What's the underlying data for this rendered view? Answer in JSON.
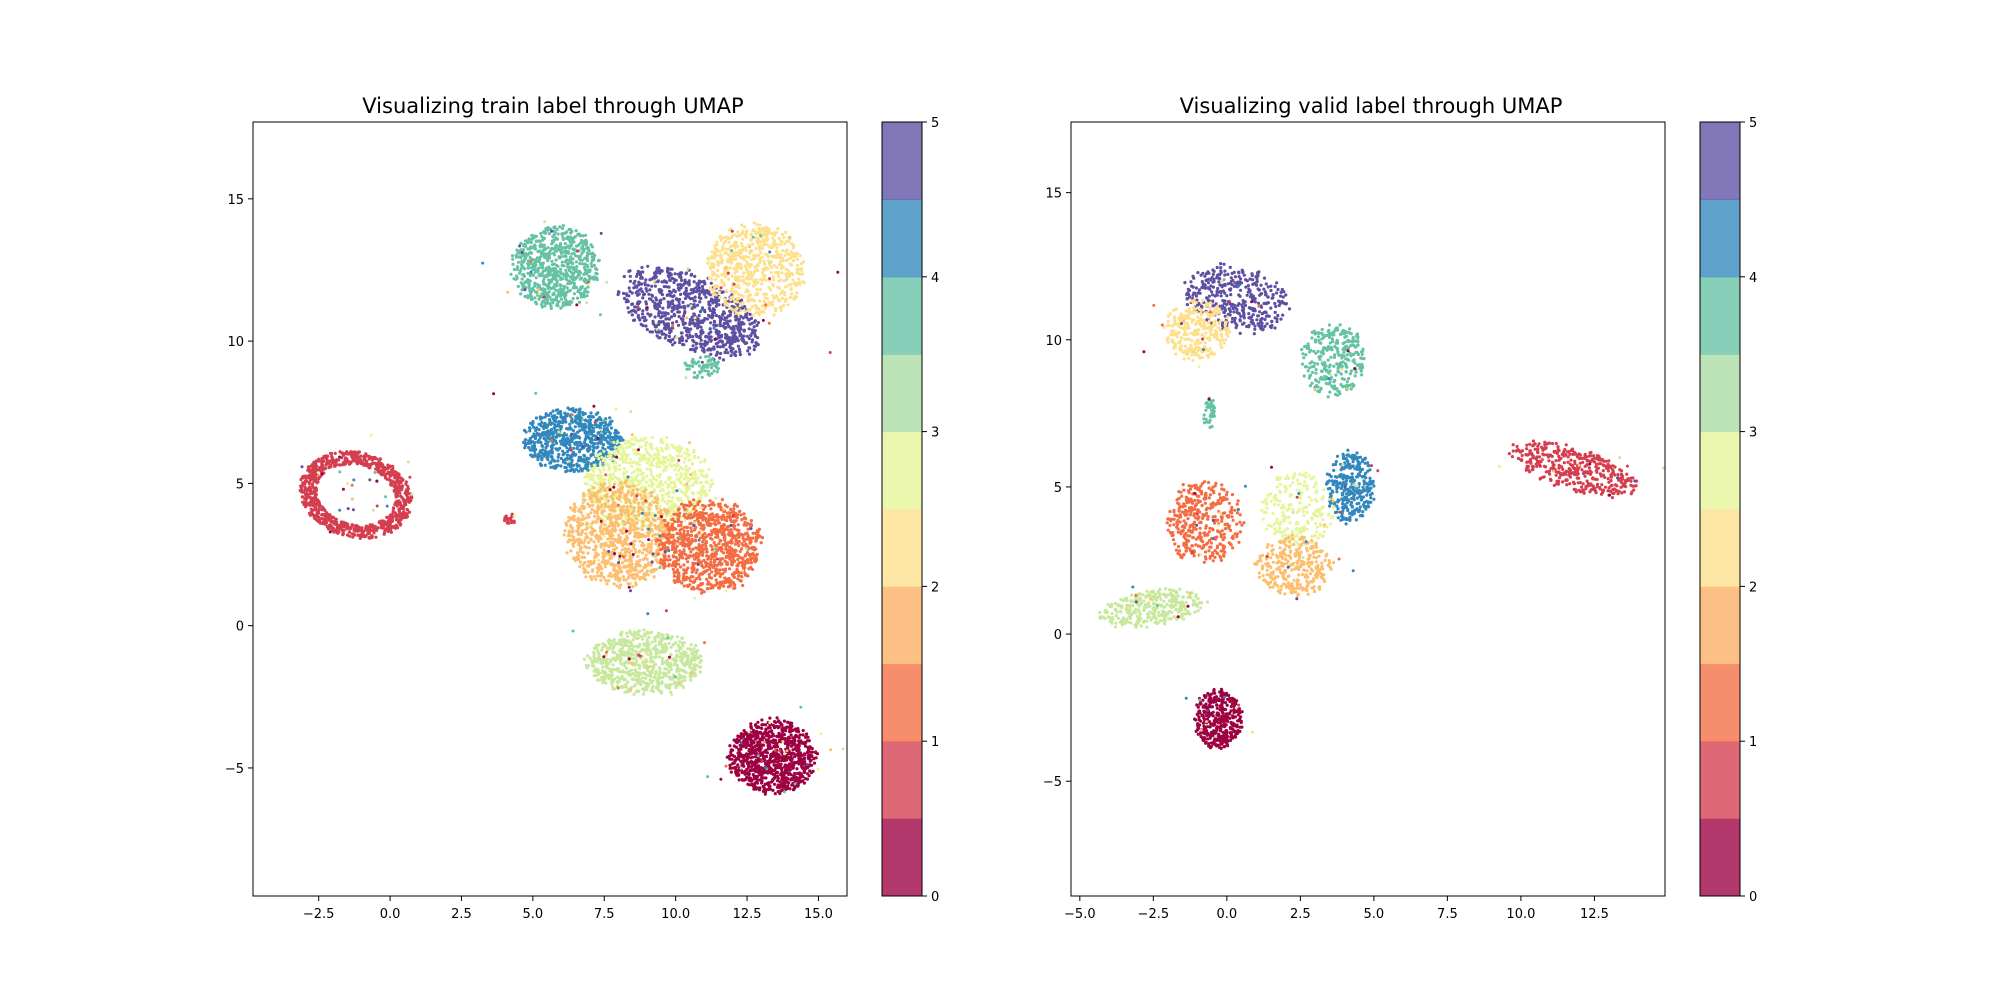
{
  "colorbar_colors": [
    "#9e0142",
    "#d53e4f",
    "#f46d43",
    "#fdae61",
    "#fee08b",
    "#e6f598",
    "#abdda4",
    "#66c2a5",
    "#3288bd",
    "#5e4fa2"
  ],
  "class_colors": {
    "0": "#9e0142",
    "1": "#d53e4f",
    "1.5": "#f46d43",
    "2": "#fdbf6f",
    "2.5": "#fee08b",
    "3": "#c7e89d",
    "3.5": "#e6f598",
    "4": "#66c2a5",
    "4.5": "#3288bd",
    "5": "#5e4fa2"
  },
  "chart_data": [
    {
      "type": "scatter",
      "title": "Visualizing train label through UMAP",
      "xlabel": "",
      "ylabel": "",
      "xlim": [
        -4.8,
        16.0
      ],
      "ylim": [
        -9.5,
        17.7
      ],
      "xticks": [
        "−2.5",
        "0.0",
        "2.5",
        "5.0",
        "7.5",
        "10.0",
        "12.5",
        "15.0"
      ],
      "xtick_values": [
        -2.5,
        0,
        2.5,
        5,
        7.5,
        10,
        12.5,
        15
      ],
      "yticks": [
        "−5",
        "0",
        "5",
        "10",
        "15"
      ],
      "ytick_values": [
        -5,
        0,
        5,
        10,
        15
      ],
      "colorbar": {
        "ticks": [
          "0",
          "1",
          "2",
          "3",
          "4",
          "5"
        ],
        "tick_values": [
          0,
          1,
          2,
          3,
          4,
          5
        ],
        "range": [
          0,
          5
        ]
      },
      "grid": false,
      "clusters": [
        {
          "label": 1,
          "shape": "ring",
          "cx": -1.2,
          "cy": 4.6,
          "rx": 2.0,
          "ry": 1.5,
          "angle": -15,
          "n": 900
        },
        {
          "label": 1,
          "shape": "blob",
          "cx": 4.2,
          "cy": 3.8,
          "rx": 0.2,
          "ry": 0.25,
          "angle": 0,
          "n": 20
        },
        {
          "label": 4,
          "shape": "blob",
          "cx": 5.8,
          "cy": 12.6,
          "rx": 1.5,
          "ry": 1.4,
          "angle": 0,
          "n": 700
        },
        {
          "label": 5,
          "shape": "blob",
          "cx": 10.5,
          "cy": 11.0,
          "rx": 2.6,
          "ry": 1.3,
          "angle": -25,
          "n": 800
        },
        {
          "label": 2.5,
          "shape": "blob",
          "cx": 12.8,
          "cy": 12.5,
          "rx": 1.7,
          "ry": 1.6,
          "angle": 0,
          "n": 600
        },
        {
          "label": 4,
          "shape": "blob",
          "cx": 10.9,
          "cy": 9.1,
          "rx": 0.6,
          "ry": 0.4,
          "angle": 0,
          "n": 60
        },
        {
          "label": 4.5,
          "shape": "blob",
          "cx": 6.4,
          "cy": 6.5,
          "rx": 1.7,
          "ry": 1.1,
          "angle": 0,
          "n": 700
        },
        {
          "label": 3.5,
          "shape": "blob",
          "cx": 9.0,
          "cy": 5.0,
          "rx": 2.2,
          "ry": 1.6,
          "angle": 0,
          "n": 800
        },
        {
          "label": 2,
          "shape": "blob",
          "cx": 8.0,
          "cy": 3.2,
          "rx": 1.9,
          "ry": 1.8,
          "angle": 0,
          "n": 900
        },
        {
          "label": 1.5,
          "shape": "blob",
          "cx": 11.2,
          "cy": 2.8,
          "rx": 1.8,
          "ry": 1.6,
          "angle": 0,
          "n": 900
        },
        {
          "label": 3,
          "shape": "blob",
          "cx": 8.9,
          "cy": -1.3,
          "rx": 2.0,
          "ry": 1.1,
          "angle": 0,
          "n": 700
        },
        {
          "label": 0,
          "shape": "blob",
          "cx": 13.4,
          "cy": -4.6,
          "rx": 1.5,
          "ry": 1.3,
          "angle": 0,
          "n": 900
        }
      ]
    },
    {
      "type": "scatter",
      "title": "Visualizing valid label through UMAP",
      "xlabel": "",
      "ylabel": "",
      "xlim": [
        -5.3,
        14.9
      ],
      "ylim": [
        -8.9,
        17.4
      ],
      "xticks": [
        "−5.0",
        "−2.5",
        "0.0",
        "2.5",
        "5.0",
        "7.5",
        "10.0",
        "12.5"
      ],
      "xtick_values": [
        -5,
        -2.5,
        0,
        2.5,
        5,
        7.5,
        10,
        12.5
      ],
      "yticks": [
        "−5",
        "0",
        "5",
        "10",
        "15"
      ],
      "ytick_values": [
        -5,
        0,
        5,
        10,
        15
      ],
      "colorbar": {
        "ticks": [
          "0",
          "1",
          "2",
          "3",
          "4",
          "5"
        ],
        "tick_values": [
          0,
          1,
          2,
          3,
          4,
          5
        ],
        "range": [
          0,
          5
        ]
      },
      "grid": false,
      "clusters": [
        {
          "label": 5,
          "shape": "blob",
          "cx": 0.3,
          "cy": 11.4,
          "rx": 1.8,
          "ry": 1.1,
          "angle": -15,
          "n": 380
        },
        {
          "label": 2.5,
          "shape": "blob",
          "cx": -1.0,
          "cy": 10.3,
          "rx": 1.1,
          "ry": 1.0,
          "angle": 0,
          "n": 280
        },
        {
          "label": 4,
          "shape": "blob",
          "cx": 3.6,
          "cy": 9.3,
          "rx": 1.1,
          "ry": 1.2,
          "angle": 0,
          "n": 300
        },
        {
          "label": 4,
          "shape": "blob",
          "cx": -0.6,
          "cy": 7.5,
          "rx": 0.2,
          "ry": 0.6,
          "angle": 0,
          "n": 40
        },
        {
          "label": 1.5,
          "shape": "blob",
          "cx": -0.8,
          "cy": 3.8,
          "rx": 1.3,
          "ry": 1.4,
          "angle": 0,
          "n": 380
        },
        {
          "label": 3.5,
          "shape": "blob",
          "cx": 2.4,
          "cy": 4.2,
          "rx": 1.2,
          "ry": 1.3,
          "angle": 0,
          "n": 220
        },
        {
          "label": 4.5,
          "shape": "blob",
          "cx": 4.2,
          "cy": 5.0,
          "rx": 0.8,
          "ry": 1.2,
          "angle": 0,
          "n": 320
        },
        {
          "label": 2,
          "shape": "blob",
          "cx": 2.3,
          "cy": 2.3,
          "rx": 1.3,
          "ry": 1.0,
          "angle": 0,
          "n": 300
        },
        {
          "label": 3,
          "shape": "blob",
          "cx": -2.5,
          "cy": 0.9,
          "rx": 1.8,
          "ry": 0.6,
          "angle": 10,
          "n": 320
        },
        {
          "label": 1,
          "shape": "blob",
          "cx": 11.8,
          "cy": 5.6,
          "rx": 2.2,
          "ry": 0.7,
          "angle": -18,
          "n": 420
        },
        {
          "label": 0,
          "shape": "blob",
          "cx": -0.3,
          "cy": -2.9,
          "rx": 0.8,
          "ry": 1.0,
          "angle": 0,
          "n": 380
        }
      ]
    }
  ]
}
